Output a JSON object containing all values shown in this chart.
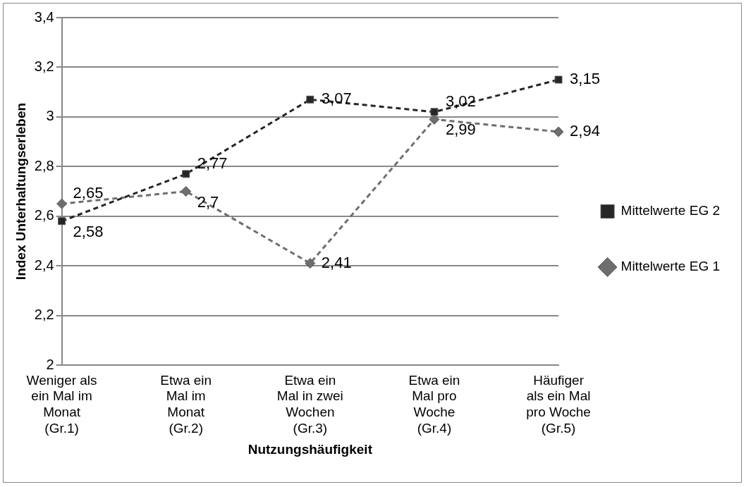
{
  "chart_data": {
    "type": "line",
    "xlabel": "Nutzungshäufigkeit",
    "ylabel": "Index Unterhaltungserleben",
    "categories": [
      "Weniger als ein Mal im Monat (Gr.1)",
      "Etwa ein Mal im Monat (Gr.2)",
      "Etwa ein Mal in zwei Wochen (Gr.3)",
      "Etwa ein Mal pro Woche (Gr.4)",
      "Häufiger als ein Mal pro Woche (Gr.5)"
    ],
    "series": [
      {
        "name": "Mittelwerte EG 2",
        "color": "#262626",
        "marker": "square",
        "values": [
          2.58,
          2.77,
          3.07,
          3.02,
          3.15
        ],
        "value_labels": [
          "2,58",
          "2,77",
          "3,07",
          "3,02",
          "3,15"
        ]
      },
      {
        "name": "Mittelwerte EG 1",
        "color": "#6e6e6e",
        "marker": "diamond",
        "values": [
          2.65,
          2.7,
          2.41,
          2.99,
          2.94
        ],
        "value_labels": [
          "2,65",
          "2,7",
          "2,41",
          "2,99",
          "2,94"
        ]
      }
    ],
    "ylim": [
      2,
      3.4
    ],
    "yticks": [
      2,
      {
        "value": 2.2,
        "label": "2,2"
      },
      {
        "value": 2.4,
        "label": "2,4"
      },
      {
        "value": 2.6,
        "label": "2,6"
      },
      {
        "value": 2.8,
        "label": "2,8"
      },
      3,
      {
        "value": 3.2,
        "label": "3,2"
      },
      {
        "value": 3.4,
        "label": "3,4"
      }
    ],
    "grid": "y",
    "legend": "right",
    "line_style": "dashed"
  }
}
